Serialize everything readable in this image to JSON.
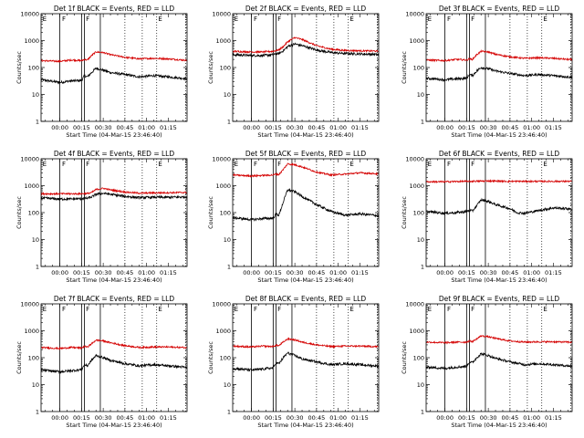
{
  "figure": {
    "x_tick_labels": [
      "00:00",
      "00:15",
      "00:30",
      "00:45",
      "01:00",
      "01:15"
    ],
    "x_axis_label": "Start Time (04-Mar-15 23:46:40)",
    "y_axis_label": "Counts/sec",
    "y_tick_labels": [
      "1",
      "10",
      "100",
      "1000",
      "10000"
    ],
    "colors": {
      "events": "#000000",
      "lld": "#d40000"
    },
    "markers": {
      "E": "E",
      "F": "F"
    }
  },
  "chart_data": [
    {
      "type": "line",
      "title": "Det 1f BLACK = Events, RED = LLD",
      "yscale": "log",
      "ylim": [
        1,
        10000
      ],
      "xlim_minutes": [
        -13,
        88
      ],
      "series": [
        {
          "name": "Events",
          "x": [
            -13,
            0,
            8,
            15,
            17,
            19,
            22,
            25,
            30,
            35,
            45,
            55,
            65,
            75,
            85,
            88
          ],
          "y": [
            35,
            28,
            32,
            33,
            50,
            45,
            65,
            95,
            80,
            65,
            55,
            45,
            50,
            45,
            40,
            38
          ]
        },
        {
          "name": "LLD",
          "x": [
            -13,
            0,
            8,
            15,
            17,
            19,
            22,
            25,
            30,
            35,
            45,
            55,
            65,
            75,
            85,
            88
          ],
          "y": [
            180,
            170,
            190,
            180,
            200,
            190,
            280,
            380,
            360,
            300,
            240,
            210,
            220,
            210,
            190,
            185
          ]
        }
      ],
      "vlines": [
        0,
        15,
        17,
        28
      ],
      "dotted_vlines": [
        45,
        57,
        67,
        87
      ]
    },
    {
      "type": "line",
      "title": "Det 2f BLACK = Events, RED = LLD",
      "yscale": "log",
      "ylim": [
        1,
        10000
      ],
      "xlim_minutes": [
        -13,
        88
      ],
      "series": [
        {
          "name": "Events",
          "x": [
            -13,
            0,
            8,
            15,
            17,
            19,
            22,
            25,
            30,
            35,
            45,
            55,
            65,
            75,
            85,
            88
          ],
          "y": [
            300,
            280,
            280,
            300,
            320,
            330,
            420,
            600,
            750,
            650,
            450,
            360,
            330,
            320,
            310,
            300
          ]
        },
        {
          "name": "LLD",
          "x": [
            -13,
            0,
            8,
            15,
            17,
            19,
            22,
            25,
            30,
            35,
            45,
            55,
            65,
            75,
            85,
            88
          ],
          "y": [
            400,
            380,
            380,
            400,
            430,
            450,
            600,
            900,
            1300,
            1100,
            650,
            480,
            430,
            420,
            410,
            400
          ]
        }
      ],
      "vlines": [
        0,
        15,
        17,
        28
      ],
      "dotted_vlines": [
        45,
        57,
        67,
        87
      ]
    },
    {
      "type": "line",
      "title": "Det 3f BLACK = Events, RED = LLD",
      "yscale": "log",
      "ylim": [
        1,
        10000
      ],
      "xlim_minutes": [
        -13,
        88
      ],
      "series": [
        {
          "name": "Events",
          "x": [
            -13,
            0,
            8,
            15,
            17,
            19,
            22,
            25,
            30,
            35,
            45,
            55,
            65,
            75,
            85,
            88
          ],
          "y": [
            40,
            35,
            38,
            40,
            55,
            50,
            75,
            100,
            90,
            75,
            60,
            50,
            55,
            50,
            45,
            43
          ]
        },
        {
          "name": "LLD",
          "x": [
            -13,
            0,
            8,
            15,
            17,
            19,
            22,
            25,
            30,
            35,
            45,
            55,
            65,
            75,
            85,
            88
          ],
          "y": [
            190,
            180,
            200,
            190,
            210,
            200,
            300,
            400,
            380,
            310,
            250,
            220,
            230,
            220,
            200,
            195
          ]
        }
      ],
      "vlines": [
        0,
        15,
        17,
        28
      ],
      "dotted_vlines": [
        45,
        57,
        67,
        87
      ]
    },
    {
      "type": "line",
      "title": "Det 4f BLACK = Events, RED = LLD",
      "yscale": "log",
      "ylim": [
        1,
        10000
      ],
      "xlim_minutes": [
        -13,
        88
      ],
      "series": [
        {
          "name": "Events",
          "x": [
            -13,
            0,
            8,
            15,
            17,
            19,
            22,
            25,
            30,
            35,
            45,
            55,
            65,
            75,
            85,
            88
          ],
          "y": [
            350,
            320,
            320,
            330,
            340,
            340,
            380,
            480,
            520,
            480,
            400,
            360,
            370,
            370,
            380,
            380
          ]
        },
        {
          "name": "LLD",
          "x": [
            -13,
            0,
            8,
            15,
            17,
            19,
            22,
            25,
            30,
            35,
            45,
            55,
            65,
            75,
            85,
            88
          ],
          "y": [
            500,
            500,
            500,
            500,
            510,
            510,
            560,
            720,
            800,
            700,
            580,
            530,
            540,
            550,
            560,
            560
          ]
        }
      ],
      "vlines": [
        0,
        15,
        17,
        28
      ],
      "dotted_vlines": [
        45,
        57,
        67,
        87
      ]
    },
    {
      "type": "line",
      "title": "Det 5f BLACK = Events, RED = LLD",
      "yscale": "log",
      "ylim": [
        1,
        10000
      ],
      "xlim_minutes": [
        -13,
        88
      ],
      "series": [
        {
          "name": "Events",
          "x": [
            -13,
            0,
            8,
            15,
            17,
            19,
            22,
            25,
            30,
            35,
            45,
            55,
            65,
            75,
            85,
            88
          ],
          "y": [
            65,
            55,
            60,
            62,
            90,
            80,
            250,
            700,
            600,
            400,
            200,
            110,
            80,
            90,
            80,
            75
          ]
        },
        {
          "name": "LLD",
          "x": [
            -13,
            0,
            8,
            15,
            17,
            19,
            22,
            25,
            30,
            35,
            45,
            55,
            65,
            75,
            85,
            88
          ],
          "y": [
            2500,
            2300,
            2400,
            2500,
            2700,
            2600,
            4000,
            6500,
            6000,
            5000,
            3200,
            2500,
            2700,
            3000,
            2800,
            2700
          ]
        }
      ],
      "vlines": [
        0,
        15,
        17,
        28
      ],
      "dotted_vlines": [
        45,
        57,
        67,
        87
      ]
    },
    {
      "type": "line",
      "title": "Det 6f BLACK = Events, RED = LLD",
      "yscale": "log",
      "ylim": [
        1,
        10000
      ],
      "xlim_minutes": [
        -13,
        88
      ],
      "series": [
        {
          "name": "Events",
          "x": [
            -13,
            0,
            8,
            15,
            17,
            19,
            22,
            25,
            30,
            35,
            45,
            50,
            55,
            65,
            75,
            85,
            88
          ],
          "y": [
            110,
            95,
            100,
            110,
            120,
            115,
            180,
            300,
            260,
            200,
            140,
            100,
            95,
            120,
            150,
            140,
            130
          ]
        },
        {
          "name": "LLD",
          "x": [
            -13,
            0,
            15,
            17,
            30,
            45,
            60,
            75,
            88
          ],
          "y": [
            1400,
            1400,
            1450,
            1450,
            1500,
            1450,
            1450,
            1450,
            1450
          ]
        }
      ],
      "vlines": [
        0,
        15,
        17,
        28
      ],
      "dotted_vlines": [
        45,
        57,
        67,
        87
      ]
    },
    {
      "type": "line",
      "title": "Det 7f BLACK = Events, RED = LLD",
      "yscale": "log",
      "ylim": [
        1,
        10000
      ],
      "xlim_minutes": [
        -13,
        88
      ],
      "series": [
        {
          "name": "Events",
          "x": [
            -13,
            0,
            8,
            15,
            17,
            19,
            22,
            25,
            30,
            35,
            45,
            55,
            65,
            75,
            85,
            88
          ],
          "y": [
            35,
            30,
            33,
            36,
            55,
            50,
            80,
            120,
            100,
            80,
            60,
            50,
            55,
            50,
            45,
            42
          ]
        },
        {
          "name": "LLD",
          "x": [
            -13,
            0,
            8,
            15,
            17,
            19,
            22,
            25,
            30,
            35,
            45,
            55,
            65,
            75,
            85,
            88
          ],
          "y": [
            240,
            220,
            240,
            230,
            260,
            250,
            330,
            450,
            420,
            360,
            280,
            240,
            250,
            250,
            240,
            235
          ]
        }
      ],
      "vlines": [
        0,
        15,
        17,
        28
      ],
      "dotted_vlines": [
        45,
        57,
        67,
        87
      ]
    },
    {
      "type": "line",
      "title": "Det 8f BLACK = Events, RED = LLD",
      "yscale": "log",
      "ylim": [
        1,
        10000
      ],
      "xlim_minutes": [
        -13,
        88
      ],
      "series": [
        {
          "name": "Events",
          "x": [
            -13,
            0,
            8,
            15,
            17,
            19,
            22,
            25,
            30,
            35,
            45,
            55,
            65,
            75,
            85,
            88
          ],
          "y": [
            40,
            35,
            38,
            42,
            65,
            60,
            100,
            150,
            120,
            90,
            70,
            55,
            60,
            55,
            50,
            48
          ]
        },
        {
          "name": "LLD",
          "x": [
            -13,
            0,
            8,
            15,
            17,
            19,
            22,
            25,
            30,
            35,
            45,
            55,
            65,
            75,
            85,
            88
          ],
          "y": [
            270,
            250,
            270,
            260,
            290,
            280,
            380,
            500,
            460,
            380,
            300,
            260,
            270,
            270,
            260,
            255
          ]
        }
      ],
      "vlines": [
        0,
        15,
        17,
        28
      ],
      "dotted_vlines": [
        45,
        57,
        67,
        87
      ]
    },
    {
      "type": "line",
      "title": "Det 9f BLACK = Events, RED = LLD",
      "yscale": "log",
      "ylim": [
        1,
        10000
      ],
      "xlim_minutes": [
        -13,
        88
      ],
      "series": [
        {
          "name": "Events",
          "x": [
            -13,
            0,
            8,
            15,
            17,
            19,
            22,
            25,
            30,
            35,
            45,
            55,
            65,
            75,
            85,
            88
          ],
          "y": [
            45,
            40,
            45,
            48,
            70,
            65,
            100,
            140,
            120,
            95,
            70,
            55,
            60,
            55,
            50,
            48
          ]
        },
        {
          "name": "LLD",
          "x": [
            -13,
            0,
            8,
            15,
            17,
            19,
            22,
            25,
            30,
            35,
            45,
            55,
            65,
            75,
            85,
            88
          ],
          "y": [
            380,
            360,
            380,
            380,
            420,
            400,
            500,
            650,
            600,
            520,
            420,
            380,
            390,
            390,
            380,
            375
          ]
        }
      ],
      "vlines": [
        0,
        15,
        17,
        28
      ],
      "dotted_vlines": [
        45,
        57,
        67,
        87
      ]
    }
  ]
}
